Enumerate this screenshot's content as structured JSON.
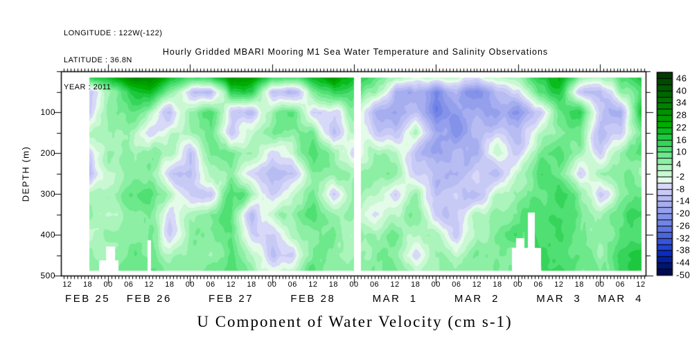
{
  "header": {
    "longitude": "LONGITUDE : 122W(-122)",
    "latitude": "LATITUDE : 36.8N",
    "year": "YEAR : 2011"
  },
  "title": "Hourly Gridded MBARI Mooring M1 Sea Water Temperature and Salinity Observations",
  "xaxis_title": "U Component of Water Velocity (cm s-1)",
  "yaxis_title": "DEPTH (m)",
  "chart_data": {
    "type": "heatmap",
    "time_start": "FEB 25 12:00",
    "time_end": "MAR 4 12:00",
    "hours_span": 168,
    "x_hour_labels": [
      "12",
      "18",
      "00",
      "06",
      "12",
      "18",
      "00",
      "06",
      "12",
      "18",
      "00",
      "06",
      "12",
      "18",
      "00",
      "06",
      "12",
      "18",
      "00",
      "06",
      "12",
      "18",
      "00",
      "06",
      "12",
      "18",
      "00",
      "06",
      "12"
    ],
    "x_hour_label_interval": 6,
    "x_date_labels": [
      "FEB 25",
      "FEB 26",
      "FEB 27",
      "FEB 28",
      "MAR  1",
      "MAR  2",
      "MAR  3",
      "MAR  4"
    ],
    "x_date_center_hours": [
      6,
      24,
      48,
      72,
      96,
      120,
      144,
      162
    ],
    "midnight_hours": [
      12,
      36,
      60,
      84,
      108,
      132,
      156
    ],
    "ylim": [
      0,
      500
    ],
    "y_tick_labels": [
      "100",
      "200",
      "300",
      "400",
      "500"
    ],
    "y_tick_values": [
      100,
      200,
      300,
      400,
      500
    ],
    "y_minor_values": [
      0,
      50,
      150,
      250,
      350,
      450
    ],
    "colorbar": {
      "min": -50,
      "max": 49,
      "step": 3,
      "labels": [
        "46",
        "40",
        "34",
        "28",
        "22",
        "16",
        "10",
        "4",
        "-2",
        "-8",
        "-14",
        "-20",
        "-26",
        "-32",
        "-38",
        "-44",
        "-50"
      ],
      "label_values": [
        46,
        40,
        34,
        28,
        22,
        16,
        10,
        4,
        -2,
        -8,
        -14,
        -20,
        -26,
        -32,
        -38,
        -44,
        -50
      ],
      "colors": [
        "#003c00",
        "#004a00",
        "#005800",
        "#006600",
        "#007400",
        "#008200",
        "#009000",
        "#009e00",
        "#00ac00",
        "#0abb1e",
        "#1ec83e",
        "#36d45a",
        "#50df73",
        "#6de88b",
        "#8cefa4",
        "#abf4bc",
        "#c9f8d3",
        "#e4fbe9",
        "#d8d8f8",
        "#c8caf6",
        "#b7bcf3",
        "#a6aef0",
        "#95a0ed",
        "#8492ea",
        "#7284e6",
        "#5f75e2",
        "#4c65de",
        "#3854d9",
        "#2443d3",
        "#0a2bbd",
        "#041f9e",
        "#00156e",
        "#000c52"
      ]
    },
    "grid": {
      "comment_units": "u velocity cm/s, rows = depth 0..500 by 50 m, cols = hours 0..168 by 6 h from FEB 25 12:00",
      "depths": [
        0,
        50,
        100,
        150,
        200,
        250,
        300,
        350,
        400,
        450,
        500
      ],
      "hours": [
        0,
        6,
        12,
        18,
        24,
        30,
        36,
        42,
        48,
        54,
        60,
        66,
        72,
        78,
        84,
        90,
        96,
        102,
        108,
        114,
        120,
        126,
        132,
        138,
        144,
        150,
        156,
        162,
        168
      ],
      "values": [
        [
          35,
          30,
          28,
          38,
          42,
          30,
          26,
          30,
          40,
          34,
          28,
          24,
          30,
          36,
          26,
          18,
          12,
          8,
          14,
          8,
          6,
          10,
          12,
          22,
          28,
          16,
          10,
          18,
          24
        ],
        [
          20,
          -10,
          8,
          20,
          25,
          8,
          -6,
          -12,
          18,
          22,
          -8,
          -12,
          10,
          20,
          12,
          8,
          -10,
          -14,
          -18,
          -12,
          -20,
          -8,
          -5,
          16,
          20,
          -6,
          -10,
          6,
          16
        ],
        [
          8,
          -5,
          10,
          14,
          5,
          -8,
          10,
          15,
          -5,
          -8,
          10,
          14,
          -6,
          -5,
          10,
          -10,
          -16,
          -8,
          -22,
          -15,
          -10,
          -14,
          -16,
          -6,
          14,
          18,
          -8,
          -12,
          22
        ],
        [
          5,
          6,
          9,
          8,
          -5,
          5,
          8,
          10,
          -8,
          5,
          12,
          8,
          10,
          -10,
          5,
          -5,
          -8,
          5,
          -12,
          -18,
          -8,
          -5,
          -10,
          5,
          8,
          12,
          -12,
          -5,
          10
        ],
        [
          6,
          -6,
          8,
          8,
          10,
          8,
          -8,
          10,
          12,
          8,
          -5,
          5,
          15,
          8,
          -6,
          8,
          5,
          -8,
          -15,
          -10,
          -12,
          5,
          -5,
          10,
          15,
          8,
          -5,
          10,
          15
        ],
        [
          -6,
          -8,
          5,
          8,
          10,
          -5,
          -10,
          5,
          8,
          -6,
          -12,
          -8,
          10,
          10,
          5,
          10,
          8,
          -5,
          -8,
          -12,
          -5,
          -8,
          5,
          15,
          10,
          -5,
          8,
          12,
          8
        ],
        [
          5,
          5,
          8,
          12,
          15,
          5,
          -5,
          -5,
          18,
          8,
          -8,
          5,
          12,
          -5,
          8,
          5,
          -6,
          8,
          -10,
          -5,
          -8,
          5,
          8,
          12,
          18,
          10,
          -6,
          8,
          12
        ],
        [
          8,
          8,
          6,
          8,
          12,
          -5,
          5,
          10,
          15,
          -8,
          5,
          8,
          15,
          8,
          6,
          -5,
          5,
          10,
          -5,
          -8,
          5,
          8,
          12,
          18,
          15,
          12,
          5,
          15,
          18
        ],
        [
          5,
          5,
          8,
          8,
          12,
          -5,
          8,
          10,
          15,
          -5,
          -6,
          5,
          10,
          12,
          5,
          8,
          10,
          5,
          5,
          -5,
          8,
          10,
          15,
          15,
          20,
          8,
          10,
          12,
          15
        ],
        [
          8,
          8,
          6,
          10,
          12,
          5,
          8,
          8,
          15,
          5,
          -8,
          -5,
          12,
          8,
          8,
          10,
          8,
          -5,
          8,
          5,
          10,
          12,
          10,
          18,
          15,
          15,
          8,
          18,
          20
        ],
        [
          10,
          10,
          10,
          12,
          15,
          8,
          10,
          12,
          18,
          8,
          5,
          8,
          15,
          10,
          8,
          12,
          10,
          8,
          5,
          8,
          5,
          8,
          12,
          15,
          18,
          12,
          10,
          15,
          18
        ]
      ]
    },
    "data_bounds": {
      "h": [
        6.3,
        168
      ],
      "d": [
        15,
        487
      ]
    },
    "missing_regions": [
      [
        83.8,
        86.0,
        0,
        500
      ],
      [
        11.2,
        13.9,
        428,
        500
      ],
      [
        9.3,
        14.9,
        462,
        500
      ],
      [
        23.5,
        24.4,
        412,
        500
      ],
      [
        134.8,
        136.9,
        345,
        500
      ],
      [
        130.2,
        138.6,
        432,
        500
      ],
      [
        131.4,
        133.9,
        408,
        435
      ]
    ]
  }
}
